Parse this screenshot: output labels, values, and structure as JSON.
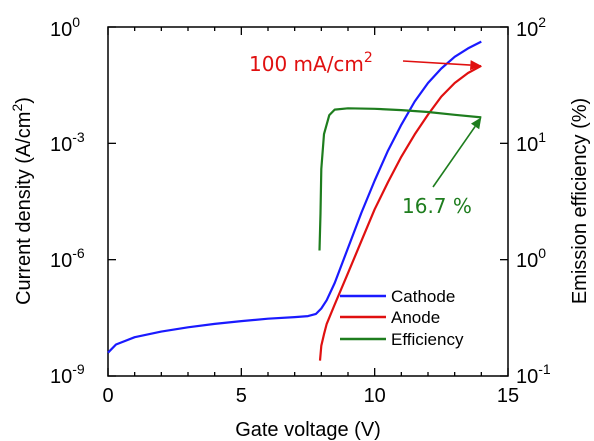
{
  "chart_data": {
    "type": "line",
    "xlabel": "Gate voltage (V)",
    "ylabel_left": "Current density (A/cm",
    "ylabel_left_sup": "2",
    "ylabel_left_close": ")",
    "ylabel_right": "Emission efficiency (%)",
    "x_range": [
      0,
      15
    ],
    "x_ticks": [
      0,
      5,
      10,
      15
    ],
    "x_tick_labels": [
      "0",
      "5",
      "10",
      "15"
    ],
    "y_left_scale": "log",
    "y_left_range": [
      1e-09,
      1
    ],
    "y_left_tick_labels": [
      {
        "base": "10",
        "exp": "-9"
      },
      {
        "base": "10",
        "exp": "-6"
      },
      {
        "base": "10",
        "exp": "-3"
      },
      {
        "base": "10",
        "exp": "0"
      }
    ],
    "y_right_scale": "log",
    "y_right_range": [
      0.1,
      100
    ],
    "y_right_tick_labels": [
      {
        "base": "10",
        "exp": "-1"
      },
      {
        "base": "10",
        "exp": "0"
      },
      {
        "base": "10",
        "exp": "1"
      },
      {
        "base": "10",
        "exp": "2"
      }
    ],
    "grid": false,
    "legend_position": "bottom-right",
    "series": [
      {
        "name": "Cathode",
        "color": "#1a1aff",
        "axis": "left",
        "points": [
          [
            0,
            4e-09
          ],
          [
            0.3,
            6.5e-09
          ],
          [
            1,
            1e-08
          ],
          [
            2,
            1.4e-08
          ],
          [
            3,
            1.8e-08
          ],
          [
            4,
            2.2e-08
          ],
          [
            5,
            2.6e-08
          ],
          [
            6,
            3e-08
          ],
          [
            7,
            3.3e-08
          ],
          [
            7.5,
            3.5e-08
          ],
          [
            7.8,
            4e-08
          ],
          [
            8.0,
            5.5e-08
          ],
          [
            8.2,
            9e-08
          ],
          [
            8.5,
            2.5e-07
          ],
          [
            9.0,
            2e-06
          ],
          [
            9.5,
            1.6e-05
          ],
          [
            10.0,
            0.00011
          ],
          [
            10.5,
            0.00065
          ],
          [
            11.0,
            0.003
          ],
          [
            11.5,
            0.012
          ],
          [
            12.0,
            0.036
          ],
          [
            12.5,
            0.085
          ],
          [
            13.0,
            0.17
          ],
          [
            13.5,
            0.28
          ],
          [
            14.0,
            0.42
          ]
        ]
      },
      {
        "name": "Anode",
        "color": "#e01010",
        "axis": "left",
        "points": [
          [
            7.95,
            2.5e-09
          ],
          [
            8.0,
            6e-09
          ],
          [
            8.1,
            1.2e-08
          ],
          [
            8.2,
            2.2e-08
          ],
          [
            8.5,
            7e-08
          ],
          [
            9.0,
            4.5e-07
          ],
          [
            9.5,
            3e-06
          ],
          [
            10.0,
            2e-05
          ],
          [
            10.5,
            0.0001
          ],
          [
            11.0,
            0.00045
          ],
          [
            11.5,
            0.0017
          ],
          [
            12.0,
            0.0055
          ],
          [
            12.5,
            0.016
          ],
          [
            13.0,
            0.036
          ],
          [
            13.5,
            0.065
          ],
          [
            14.0,
            0.1
          ]
        ]
      },
      {
        "name": "Efficiency",
        "color": "#1e7d1e",
        "axis": "right",
        "points": [
          [
            7.93,
            1.2
          ],
          [
            7.97,
            2.5
          ],
          [
            8.0,
            6.0
          ],
          [
            8.1,
            12.0
          ],
          [
            8.3,
            17.5
          ],
          [
            8.5,
            19.5
          ],
          [
            9.0,
            20.0
          ],
          [
            10.0,
            19.8
          ],
          [
            11.0,
            19.3
          ],
          [
            12.0,
            18.6
          ],
          [
            13.0,
            17.6
          ],
          [
            14.0,
            16.7
          ]
        ]
      }
    ],
    "annotations": [
      {
        "text": "100 mA/cm",
        "sup": "2",
        "color": "#e01010",
        "points_to": [
          14.0,
          0.1
        ],
        "axis": "left"
      },
      {
        "text": "16.7 %",
        "color": "#1e7d1e",
        "points_to": [
          14.0,
          16.7
        ],
        "axis": "right"
      }
    ]
  }
}
